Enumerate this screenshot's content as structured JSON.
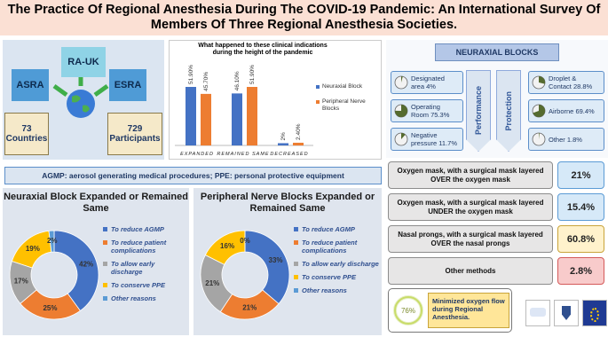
{
  "header": {
    "title": "The Practice Of Regional Anesthesia During The COVID-19 Pandemic: An International Survey Of Members Of Three Regional Anesthesia Societies."
  },
  "societies": {
    "names": [
      "ASRA",
      "RA-UK",
      "ESRA"
    ],
    "countries": {
      "number": "73",
      "label": "Countries"
    },
    "participants": {
      "number": "729",
      "label": "Participants"
    }
  },
  "chart_data": [
    {
      "type": "bar",
      "title": "What happened to these clinical indications during the height of the pandemic",
      "categories": [
        "EXPANDED",
        "REMAINED SAME",
        "DECREASED"
      ],
      "legend": "right",
      "series": [
        {
          "name": "Neuraxial Block",
          "color": "#4472c4",
          "values": [
            51.9,
            46.1,
            2
          ],
          "value_labels": [
            "51.90%",
            "46.10%",
            "2%"
          ]
        },
        {
          "name": "Peripheral Nerve Blocks",
          "color": "#ed7d31",
          "values": [
            45.7,
            51.9,
            2.4
          ],
          "value_labels": [
            "45.70%",
            "51.90%",
            "2.40%"
          ]
        }
      ]
    },
    {
      "type": "donut",
      "title": "Neuraxial Block Expanded or Remained Same",
      "categories": [
        "To reduce AGMP",
        "To reduce patient complications",
        "To allow early discharge",
        "To conserve PPE",
        "Other reasons"
      ],
      "colors": [
        "#4472c4",
        "#ed7d31",
        "#a5a5a5",
        "#ffc000",
        "#5b9bd5"
      ],
      "values": [
        42,
        25,
        17,
        19,
        2
      ],
      "value_labels": [
        "42%",
        "25%",
        "17%",
        "19%",
        "2%"
      ]
    },
    {
      "type": "donut",
      "title": "Peripheral Nerve Blocks Expanded or Remained Same",
      "categories": [
        "To reduce AGMP",
        "To reduce patient complications",
        "To allow early discharge",
        "To conserve PPE",
        "Other reasons"
      ],
      "colors": [
        "#4472c4",
        "#ed7d31",
        "#a5a5a5",
        "#ffc000",
        "#5b9bd5"
      ],
      "values": [
        33,
        21,
        21,
        16,
        0
      ],
      "value_labels": [
        "33%",
        "21%",
        "21%",
        "16%",
        "0%"
      ]
    }
  ],
  "neuraxial_blocks": {
    "title": "NEURAXIAL BLOCKS",
    "performance": {
      "label": "Performance",
      "items": [
        {
          "label": "Designated area",
          "value": 4,
          "value_label": "4%"
        },
        {
          "label": "Operating Room",
          "value": 75.3,
          "value_label": "75.3%"
        },
        {
          "label": "Negative pressure",
          "value": 11.7,
          "value_label": "11.7%"
        }
      ]
    },
    "protection": {
      "label": "Protection",
      "items": [
        {
          "label": "Droplet & Contact",
          "value": 28.8,
          "value_label": "28.8%"
        },
        {
          "label": "Airborne",
          "value": 69.4,
          "value_label": "69.4%"
        },
        {
          "label": "Other",
          "value": 1.8,
          "value_label": "1.8%"
        }
      ]
    }
  },
  "note": "AGMP: aerosol generating medical procedures; PPE: personal protective equipment",
  "oxygen": {
    "rows": [
      {
        "label": "Oxygen mask, with a surgical mask layered OVER the oxygen mask",
        "value": "21%"
      },
      {
        "label": "Oxygen mask, with a surgical mask layered UNDER the oxygen mask",
        "value": "15.4%"
      },
      {
        "label": "Nasal prongs, with a surgical mask layered OVER the nasal prongs",
        "value": "60.8%"
      },
      {
        "label": "Other methods",
        "value": "2.8%"
      }
    ],
    "summary": {
      "value": "76%",
      "text": "Minimized oxygen flow during Regional Anesthesia."
    }
  }
}
